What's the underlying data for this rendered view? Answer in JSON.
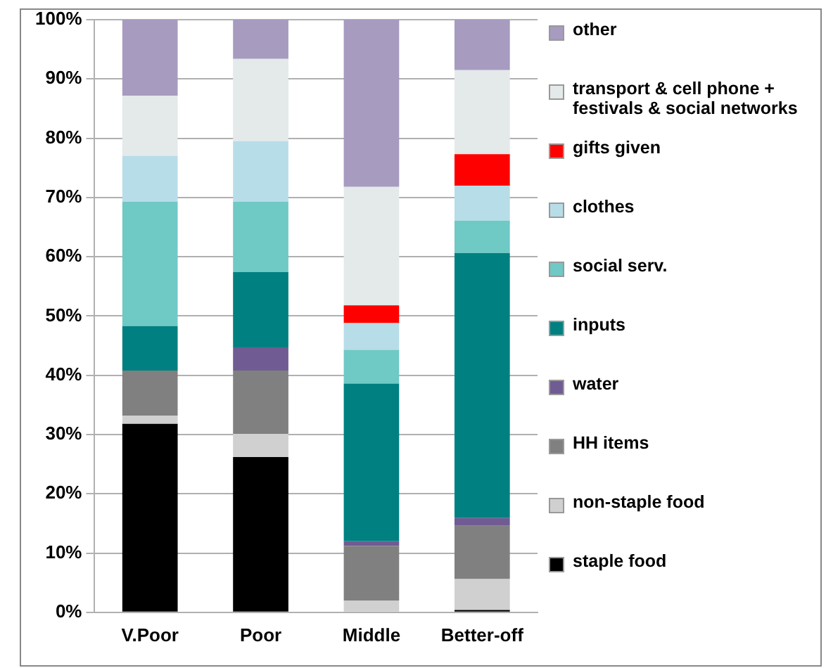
{
  "chart_data": {
    "type": "bar",
    "stacked": true,
    "categories": [
      "V.Poor",
      "Poor",
      "Middle",
      "Better-off"
    ],
    "series": [
      {
        "name": "staple food",
        "color": "#000000",
        "values": [
          31.8,
          26.2,
          0,
          0.4
        ]
      },
      {
        "name": "non-staple food",
        "color": "#d0d0d0",
        "values": [
          1.4,
          3.9,
          2.0,
          5.2
        ]
      },
      {
        "name": "HH items",
        "color": "#808080",
        "values": [
          7.6,
          10.7,
          9.2,
          9.0
        ]
      },
      {
        "name": "water",
        "color": "#715b93",
        "values": [
          0,
          3.9,
          0.8,
          1.3
        ]
      },
      {
        "name": "inputs",
        "color": "#008080",
        "values": [
          7.5,
          12.7,
          26.6,
          44.7
        ]
      },
      {
        "name": "social serv.",
        "color": "#6fc9c5",
        "values": [
          21.0,
          11.9,
          5.7,
          5.5
        ]
      },
      {
        "name": "clothes",
        "color": "#b7dde8",
        "values": [
          7.7,
          10.2,
          4.5,
          5.9
        ]
      },
      {
        "name": "gifts given",
        "color": "#ff0000",
        "values": [
          0,
          0,
          3.0,
          5.3
        ]
      },
      {
        "name": "transport & cell phone + festivals & social networks",
        "color": "#e4e9e9",
        "values": [
          10.2,
          13.9,
          20.0,
          14.2
        ]
      },
      {
        "name": "other",
        "color": "#a79bc0",
        "values": [
          12.8,
          6.6,
          28.2,
          8.5
        ]
      }
    ],
    "ylim": [
      0,
      100
    ],
    "yticks": [
      {
        "value": 0,
        "label": "0%"
      },
      {
        "value": 10,
        "label": "10%"
      },
      {
        "value": 20,
        "label": "20%"
      },
      {
        "value": 30,
        "label": "30%"
      },
      {
        "value": 40,
        "label": "40%"
      },
      {
        "value": 50,
        "label": "50%"
      },
      {
        "value": 60,
        "label": "60%"
      },
      {
        "value": 70,
        "label": "70%"
      },
      {
        "value": 80,
        "label": "80%"
      },
      {
        "value": 90,
        "label": "90%"
      },
      {
        "value": 100,
        "label": "100%"
      }
    ],
    "grid": "y",
    "legend": "right"
  }
}
